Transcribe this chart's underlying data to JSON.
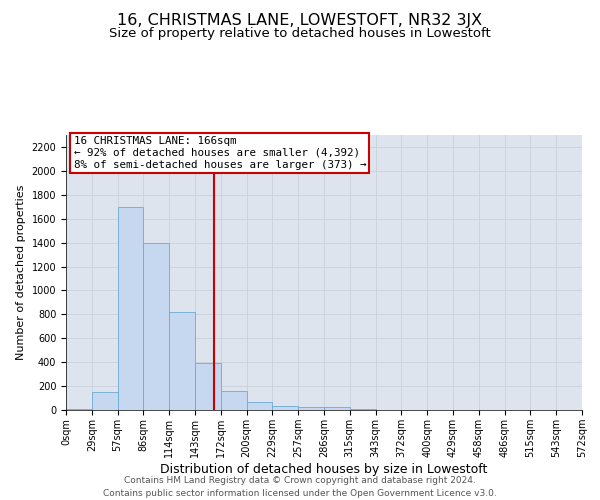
{
  "title": "16, CHRISTMAS LANE, LOWESTOFT, NR32 3JX",
  "subtitle": "Size of property relative to detached houses in Lowestoft",
  "xlabel": "Distribution of detached houses by size in Lowestoft",
  "ylabel": "Number of detached properties",
  "bin_labels": [
    "0sqm",
    "29sqm",
    "57sqm",
    "86sqm",
    "114sqm",
    "143sqm",
    "172sqm",
    "200sqm",
    "229sqm",
    "257sqm",
    "286sqm",
    "315sqm",
    "343sqm",
    "372sqm",
    "400sqm",
    "429sqm",
    "458sqm",
    "486sqm",
    "515sqm",
    "543sqm",
    "572sqm"
  ],
  "bar_values": [
    10,
    150,
    1700,
    1400,
    820,
    390,
    160,
    65,
    30,
    25,
    25,
    5,
    0,
    0,
    0,
    0,
    0,
    0,
    0,
    0
  ],
  "bar_color": "#c5d8f0",
  "bar_edge_color": "#6aaad4",
  "property_line_x": 5.75,
  "annotation_line1": "16 CHRISTMAS LANE: 166sqm",
  "annotation_line2": "← 92% of detached houses are smaller (4,392)",
  "annotation_line3": "8% of semi-detached houses are larger (373) →",
  "annotation_box_color": "white",
  "annotation_box_edge_color": "#cc0000",
  "vline_color": "#cc0000",
  "ylim": [
    0,
    2300
  ],
  "yticks": [
    0,
    200,
    400,
    600,
    800,
    1000,
    1200,
    1400,
    1600,
    1800,
    2000,
    2200
  ],
  "grid_color": "#c8d0dc",
  "background_color": "white",
  "axes_bg_color": "#dde4ee",
  "footer_line1": "Contains HM Land Registry data © Crown copyright and database right 2024.",
  "footer_line2": "Contains public sector information licensed under the Open Government Licence v3.0.",
  "title_fontsize": 11.5,
  "subtitle_fontsize": 9.5,
  "xlabel_fontsize": 9,
  "ylabel_fontsize": 8,
  "annot_fontsize": 7.8,
  "tick_fontsize": 7,
  "footer_fontsize": 6.5
}
